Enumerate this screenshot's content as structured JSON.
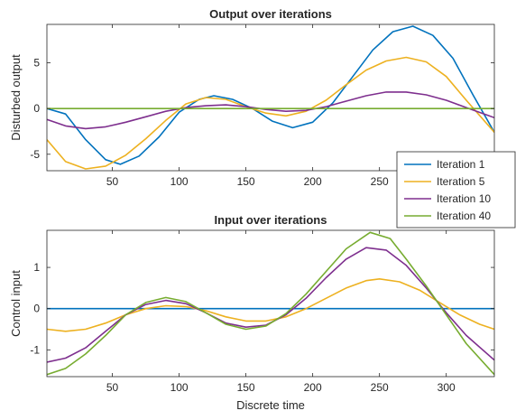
{
  "chart_data": [
    {
      "type": "line",
      "title": "Output over iterations",
      "xlabel": "",
      "ylabel": "Disturbed output",
      "xlim": [
        1,
        336
      ],
      "ylim": [
        -6.8,
        9.2
      ],
      "xticks": [
        50,
        100,
        150,
        200,
        250
      ],
      "yticks": [
        -5,
        0,
        5
      ],
      "grid": false,
      "series": [
        {
          "name": "Iteration 1",
          "color": "#0072BD",
          "x": [
            1,
            15,
            30,
            45,
            56,
            70,
            85,
            100,
            115,
            126,
            140,
            155,
            170,
            185,
            200,
            215,
            230,
            245,
            260,
            275,
            290,
            305,
            320,
            336
          ],
          "y": [
            0,
            -0.6,
            -3.4,
            -5.6,
            -6.1,
            -5.2,
            -3.1,
            -0.4,
            1.0,
            1.4,
            1.0,
            0.0,
            -1.4,
            -2.1,
            -1.5,
            0.6,
            3.5,
            6.4,
            8.4,
            9.0,
            8.0,
            5.5,
            1.5,
            -2.6
          ]
        },
        {
          "name": "Iteration 5",
          "color": "#EDB120",
          "x": [
            1,
            15,
            30,
            45,
            60,
            75,
            90,
            105,
            120,
            135,
            150,
            165,
            180,
            195,
            210,
            225,
            240,
            255,
            270,
            285,
            300,
            315,
            336
          ],
          "y": [
            -3.4,
            -5.8,
            -6.6,
            -6.3,
            -5.1,
            -3.3,
            -1.3,
            0.5,
            1.2,
            1.0,
            0.2,
            -0.5,
            -0.8,
            -0.3,
            0.9,
            2.6,
            4.2,
            5.2,
            5.6,
            5.1,
            3.5,
            0.9,
            -2.6
          ]
        },
        {
          "name": "Iteration 10",
          "color": "#7E2F8E",
          "x": [
            1,
            15,
            30,
            45,
            60,
            75,
            90,
            105,
            120,
            135,
            150,
            165,
            180,
            195,
            210,
            225,
            240,
            255,
            270,
            285,
            300,
            315,
            336
          ],
          "y": [
            -1.2,
            -1.9,
            -2.2,
            -2.0,
            -1.5,
            -0.9,
            -0.3,
            0.1,
            0.3,
            0.4,
            0.2,
            -0.1,
            -0.3,
            -0.2,
            0.2,
            0.8,
            1.4,
            1.8,
            1.8,
            1.5,
            0.9,
            0.1,
            -1.0
          ]
        },
        {
          "name": "Iteration 40",
          "color": "#77AC30",
          "x": [
            1,
            100,
            200,
            336
          ],
          "y": [
            0,
            0,
            0,
            0
          ]
        }
      ],
      "legend": {
        "placement": "outside-right-between-axes",
        "entries": [
          "Iteration 1",
          "Iteration 5",
          "Iteration 10",
          "Iteration 40"
        ]
      }
    },
    {
      "type": "line",
      "title": "Input over iterations",
      "xlabel": "Discrete time",
      "ylabel": "Control input",
      "xlim": [
        1,
        336
      ],
      "ylim": [
        -1.65,
        1.9
      ],
      "xticks": [
        50,
        100,
        150,
        200,
        250,
        300
      ],
      "yticks": [
        -1,
        0,
        1
      ],
      "grid": false,
      "series": [
        {
          "name": "Iteration 1",
          "color": "#0072BD",
          "x": [
            1,
            336
          ],
          "y": [
            0,
            0
          ]
        },
        {
          "name": "Iteration 5",
          "color": "#EDB120",
          "x": [
            1,
            15,
            30,
            45,
            60,
            75,
            90,
            105,
            120,
            135,
            150,
            165,
            180,
            195,
            210,
            225,
            240,
            250,
            265,
            280,
            295,
            310,
            325,
            336
          ],
          "y": [
            -0.5,
            -0.55,
            -0.5,
            -0.35,
            -0.15,
            0.0,
            0.07,
            0.05,
            -0.05,
            -0.2,
            -0.3,
            -0.3,
            -0.2,
            0.0,
            0.25,
            0.5,
            0.68,
            0.72,
            0.65,
            0.45,
            0.15,
            -0.15,
            -0.38,
            -0.5
          ]
        },
        {
          "name": "Iteration 10",
          "color": "#7E2F8E",
          "x": [
            1,
            15,
            30,
            45,
            60,
            75,
            90,
            105,
            120,
            135,
            150,
            165,
            180,
            195,
            210,
            225,
            240,
            255,
            270,
            285,
            300,
            315,
            336
          ],
          "y": [
            -1.3,
            -1.2,
            -0.95,
            -0.55,
            -0.15,
            0.1,
            0.2,
            0.12,
            -0.1,
            -0.35,
            -0.45,
            -0.4,
            -0.15,
            0.25,
            0.75,
            1.2,
            1.48,
            1.42,
            1.05,
            0.5,
            -0.1,
            -0.65,
            -1.25
          ]
        },
        {
          "name": "Iteration 40",
          "color": "#77AC30",
          "x": [
            1,
            15,
            30,
            45,
            60,
            75,
            90,
            105,
            120,
            135,
            150,
            165,
            180,
            195,
            210,
            225,
            243,
            258,
            270,
            285,
            300,
            315,
            336
          ],
          "y": [
            -1.6,
            -1.45,
            -1.1,
            -0.65,
            -0.15,
            0.15,
            0.27,
            0.17,
            -0.1,
            -0.38,
            -0.5,
            -0.42,
            -0.12,
            0.35,
            0.9,
            1.45,
            1.85,
            1.7,
            1.2,
            0.55,
            -0.15,
            -0.85,
            -1.6
          ]
        }
      ]
    }
  ]
}
